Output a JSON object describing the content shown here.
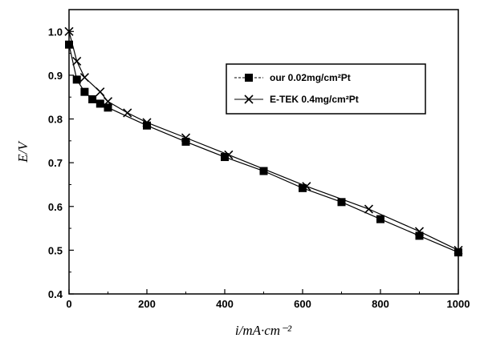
{
  "chart_data": {
    "type": "line",
    "title": "",
    "xlabel": "i/mA·cm⁻²",
    "ylabel": "E/V",
    "xlim": [
      0,
      1000
    ],
    "ylim": [
      0.4,
      1.05
    ],
    "x_ticks": [
      "0",
      "200",
      "400",
      "600",
      "800",
      "1000"
    ],
    "y_ticks": [
      "0.4",
      "0.5",
      "0.6",
      "0.7",
      "0.8",
      "0.9",
      "1.0"
    ],
    "grid": false,
    "legend_position": "top-right",
    "series": [
      {
        "name": "our 0.02mg/cm²Pt",
        "marker": "square",
        "color": "#000000",
        "x": [
          0,
          20,
          40,
          60,
          80,
          100,
          200,
          300,
          400,
          500,
          600,
          700,
          800,
          900,
          1000
        ],
        "y": [
          0.97,
          0.89,
          0.862,
          0.845,
          0.835,
          0.826,
          0.785,
          0.748,
          0.713,
          0.681,
          0.642,
          0.61,
          0.571,
          0.533,
          0.495
        ]
      },
      {
        "name": "E-TEK 0.4mg/cm²Pt",
        "marker": "x",
        "color": "#000000",
        "x": [
          0,
          20,
          40,
          80,
          100,
          150,
          200,
          300,
          410,
          610,
          770,
          900,
          1000
        ],
        "y": [
          1.0,
          0.932,
          0.895,
          0.862,
          0.84,
          0.814,
          0.792,
          0.757,
          0.718,
          0.646,
          0.594,
          0.543,
          0.5
        ]
      }
    ]
  }
}
